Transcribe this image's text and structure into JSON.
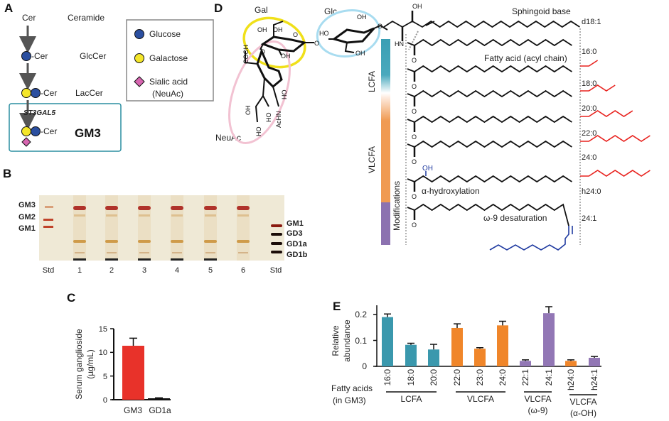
{
  "panels": {
    "a": "A",
    "b": "B",
    "c": "C",
    "d": "D",
    "e": "E"
  },
  "panel_a": {
    "rows": [
      {
        "short": "Cer",
        "name": "Ceramide"
      },
      {
        "short": "-Cer",
        "name": "GlcCer"
      },
      {
        "short": "-Cer",
        "name": "LacCer"
      },
      {
        "short": "-Cer",
        "name": "GM3"
      }
    ],
    "enzyme": "ST3GAL5",
    "legend": [
      {
        "label": "Glucose",
        "color": "#2b4fa0",
        "shape": "circle"
      },
      {
        "label": "Galactose",
        "color": "#f4e62a",
        "shape": "circle"
      },
      {
        "label": "Sialic acid",
        "label2": "(NeuAc)",
        "color": "#d765b0",
        "shape": "diamond"
      }
    ],
    "box_color": "#2a8ea0"
  },
  "panel_b": {
    "left_labels": [
      "GM3",
      "GM2",
      "GM1"
    ],
    "right_labels": [
      "GM1",
      "GD3",
      "GD1a",
      "GD1b"
    ],
    "lanes": [
      "Std",
      "1",
      "2",
      "3",
      "4",
      "5",
      "6",
      "Std"
    ]
  },
  "panel_d": {
    "sugars": {
      "gal": "Gal",
      "glc": "Glc",
      "neuac": "NeuAc"
    },
    "atoms": {
      "oh": "OH",
      "hn": "HN",
      "cooh": "COOH",
      "achn": "AcHN",
      "ho": "HO",
      "o": "O"
    },
    "sphingoid_label": "Sphingoid base",
    "fatty_acid_label": "Fatty acid (acyl chain)",
    "hydroxylation_label": "α-hydroxylation",
    "desaturation_label": "ω-9 desaturation",
    "species": [
      "d18:1",
      "16:0",
      "18:0",
      "20:0",
      "22:0",
      "24:0",
      "h24:0",
      "24:1"
    ],
    "bar_labels": {
      "lcfa": "LCFA",
      "vlcfa": "VLCFA",
      "mods": "Modifications"
    },
    "colors": {
      "lcfa": "#3a9fb4",
      "vlcfa": "#f09a52",
      "mods": "#8c72b0",
      "extension": "#e8221e",
      "modification": "#1f3aa0"
    }
  },
  "chart_data": [
    {
      "type": "bar",
      "panel": "C",
      "categories": [
        "GM3",
        "GD1a"
      ],
      "values": [
        11.4,
        0.3
      ],
      "errors": [
        1.6,
        0.1
      ],
      "ylabel": "Serum ganglioside",
      "ylabel2": "(µg/mL)",
      "ylim": [
        0,
        15
      ],
      "yticks": [
        "0",
        "5",
        "10",
        "15"
      ],
      "colors": [
        "#e8322a",
        "#111111"
      ],
      "grid": false
    },
    {
      "type": "bar",
      "panel": "E",
      "categories": [
        "16:0",
        "18:0",
        "20:0",
        "22:0",
        "23:0",
        "24:0",
        "22:1",
        "24:1",
        "h24:0",
        "h24:1"
      ],
      "values": [
        0.19,
        0.083,
        0.065,
        0.148,
        0.068,
        0.158,
        0.021,
        0.205,
        0.021,
        0.033
      ],
      "errors": [
        0.012,
        0.006,
        0.02,
        0.016,
        0.004,
        0.016,
        0.004,
        0.025,
        0.004,
        0.005
      ],
      "bar_colors": [
        "#3a98ad",
        "#3a98ad",
        "#3a98ad",
        "#f0862a",
        "#f0862a",
        "#f0862a",
        "#9277b5",
        "#9277b5",
        "#f0862a",
        "#9277b5"
      ],
      "ylabel": "Relative",
      "ylabel2": "abundance",
      "xlabel": "Fatty acids",
      "xlabel2": "(in GM3)",
      "ylim": [
        0,
        0.2
      ],
      "yticks": [
        "0",
        "0.1",
        "0.2"
      ],
      "groups": [
        {
          "label": "LCFA",
          "label2": "",
          "from": 0,
          "to": 2
        },
        {
          "label": "VLCFA",
          "label2": "",
          "from": 3,
          "to": 5
        },
        {
          "label": "VLCFA",
          "label2": "(ω-9)",
          "from": 6,
          "to": 7
        },
        {
          "label": "VLCFA",
          "label2": "(α-OH)",
          "from": 8,
          "to": 9
        }
      ],
      "grid": false
    }
  ]
}
